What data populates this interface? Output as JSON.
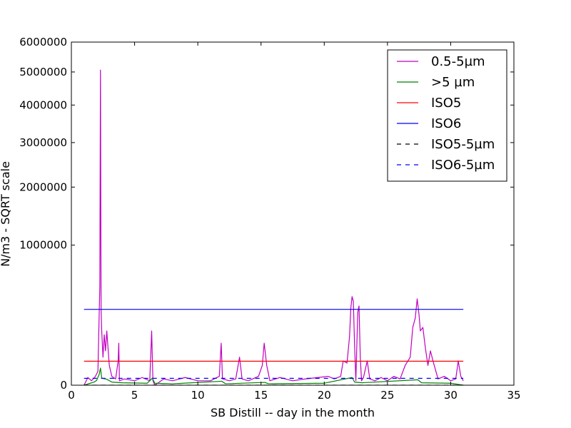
{
  "chart_data": {
    "type": "line",
    "xlabel": "SB Distill -- day in the month",
    "ylabel": "N/m3 - SQRT scale",
    "yscale": "sqrt",
    "xlim": [
      0,
      35
    ],
    "ylim": [
      0,
      6000000
    ],
    "xticks": [
      0,
      5,
      10,
      15,
      20,
      25,
      30,
      35
    ],
    "yticks": [
      0,
      1000000,
      2000000,
      3000000,
      4000000,
      5000000,
      6000000
    ],
    "legend_position": "top-right",
    "grid": false,
    "series": [
      {
        "name": "0.5-5µm",
        "color": "#c000c0",
        "style": "solid",
        "x": [
          1.0,
          1.3,
          1.6,
          1.9,
          2.1,
          2.25,
          2.3,
          2.35,
          2.4,
          2.5,
          2.6,
          2.7,
          2.8,
          2.9,
          3.0,
          3.2,
          3.5,
          3.7,
          3.75,
          3.8,
          4.2,
          5.0,
          5.6,
          6.2,
          6.35,
          6.45,
          6.6,
          7.3,
          8.0,
          9.0,
          10.0,
          11.0,
          11.7,
          11.85,
          11.95,
          12.5,
          13.0,
          13.3,
          13.5,
          14.0,
          14.8,
          15.1,
          15.25,
          15.45,
          15.7,
          16.5,
          17.5,
          18.5,
          19.5,
          20.3,
          20.8,
          21.3,
          21.5,
          21.8,
          22.0,
          22.1,
          22.2,
          22.3,
          22.4,
          22.5,
          22.65,
          22.75,
          22.85,
          22.95,
          23.1,
          23.4,
          23.6,
          24.0,
          24.5,
          25.0,
          25.5,
          26.0,
          26.4,
          26.8,
          27.0,
          27.2,
          27.35,
          27.5,
          27.6,
          27.8,
          28.0,
          28.2,
          28.4,
          28.6,
          29.0,
          29.5,
          30.0,
          30.4,
          30.6,
          30.8,
          31.0
        ],
        "y": [
          0,
          3000,
          1000,
          4000,
          10000,
          500000,
          5060000,
          300000,
          150000,
          40000,
          130000,
          60000,
          150000,
          70000,
          20000,
          4000,
          2000,
          30000,
          90000,
          1000,
          2000,
          1000,
          3000,
          1000,
          150000,
          1000,
          0,
          2000,
          1000,
          3000,
          1000,
          1000,
          4000,
          90000,
          2000,
          1000,
          2000,
          40000,
          2000,
          1000,
          4000,
          20000,
          90000,
          20000,
          1000,
          3000,
          1000,
          2000,
          3000,
          4000,
          2000,
          4000,
          30000,
          25000,
          120000,
          300000,
          400000,
          360000,
          80000,
          1000,
          270000,
          320000,
          40000,
          1000,
          3000,
          30000,
          2000,
          1000,
          3000,
          1000,
          4000,
          2000,
          20000,
          40000,
          170000,
          230000,
          380000,
          250000,
          150000,
          170000,
          70000,
          20000,
          60000,
          30000,
          2000,
          4000,
          1000,
          2000,
          30000,
          4000,
          1000
        ]
      },
      {
        "name": ">5 µm",
        "color": "#008000",
        "style": "solid",
        "x": [
          1.0,
          1.8,
          2.0,
          2.2,
          2.3,
          2.4,
          2.8,
          3.2,
          4.0,
          6.0,
          6.4,
          6.6,
          8.0,
          11.9,
          12.2,
          15.3,
          15.6,
          20.0,
          22.2,
          22.4,
          23.0,
          27.4,
          27.7,
          30.0,
          31.0
        ],
        "y": [
          0,
          500,
          1200,
          6000,
          15000,
          2500,
          1800,
          500,
          300,
          200,
          2500,
          200,
          100,
          800,
          100,
          400,
          100,
          200,
          3000,
          500,
          300,
          1500,
          300,
          200,
          0
        ]
      },
      {
        "name": "ISO5",
        "color": "#ff0000",
        "style": "solid",
        "x": [
          1,
          31
        ],
        "y": [
          29300,
          29300
        ]
      },
      {
        "name": "ISO6",
        "color": "#0000ff",
        "style": "solid",
        "x": [
          1,
          31
        ],
        "y": [
          293000,
          293000
        ]
      },
      {
        "name": "ISO5-5µm",
        "color": "#000000",
        "style": "dashed",
        "x": [
          1,
          31
        ],
        "y": [
          0,
          0
        ]
      },
      {
        "name": "ISO6-5µm",
        "color": "#0000ff",
        "style": "dashed",
        "x": [
          1,
          31
        ],
        "y": [
          2400,
          2400
        ]
      }
    ]
  }
}
